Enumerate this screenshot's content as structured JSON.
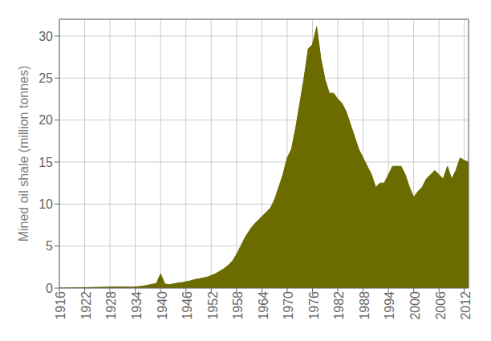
{
  "chart_data": {
    "type": "area",
    "ylabel": "Mined oil shale (million tonnes)",
    "color": "#6b6b00",
    "grid": true,
    "xlim": [
      1916,
      2013
    ],
    "xticks": [
      1916,
      1922,
      1928,
      1934,
      1940,
      1946,
      1952,
      1958,
      1964,
      1970,
      1976,
      1982,
      1988,
      1994,
      2000,
      2006,
      2012
    ],
    "ylim": [
      0,
      32
    ],
    "yticks": [
      0,
      5,
      10,
      15,
      20,
      25,
      30
    ],
    "x": [
      1916,
      1917,
      1918,
      1919,
      1920,
      1921,
      1922,
      1923,
      1924,
      1925,
      1926,
      1927,
      1928,
      1929,
      1930,
      1931,
      1932,
      1933,
      1934,
      1935,
      1936,
      1937,
      1938,
      1939,
      1940,
      1941,
      1942,
      1943,
      1944,
      1945,
      1946,
      1947,
      1948,
      1949,
      1950,
      1951,
      1952,
      1953,
      1954,
      1955,
      1956,
      1957,
      1958,
      1959,
      1960,
      1961,
      1962,
      1963,
      1964,
      1965,
      1966,
      1967,
      1968,
      1969,
      1970,
      1971,
      1972,
      1973,
      1974,
      1975,
      1976,
      1977,
      1978,
      1979,
      1980,
      1981,
      1982,
      1983,
      1984,
      1985,
      1986,
      1987,
      1988,
      1989,
      1990,
      1991,
      1992,
      1993,
      1994,
      1995,
      1996,
      1997,
      1998,
      1999,
      2000,
      2001,
      2002,
      2003,
      2004,
      2005,
      2006,
      2007,
      2008,
      2009,
      2010,
      2011,
      2012,
      2013
    ],
    "values": [
      0.0,
      0.0,
      0.02,
      0.03,
      0.04,
      0.05,
      0.06,
      0.07,
      0.08,
      0.09,
      0.1,
      0.11,
      0.12,
      0.13,
      0.14,
      0.13,
      0.12,
      0.12,
      0.14,
      0.18,
      0.25,
      0.35,
      0.45,
      0.55,
      1.7,
      0.5,
      0.4,
      0.5,
      0.6,
      0.65,
      0.75,
      0.85,
      1.0,
      1.1,
      1.2,
      1.3,
      1.5,
      1.7,
      2.0,
      2.3,
      2.7,
      3.2,
      4.0,
      5.0,
      6.0,
      6.8,
      7.5,
      8.0,
      8.5,
      9.0,
      9.5,
      10.5,
      12.0,
      13.5,
      15.5,
      16.5,
      19.0,
      22.0,
      25.0,
      28.5,
      29.0,
      31.1,
      27.3,
      24.8,
      23.2,
      23.2,
      22.5,
      22.0,
      21.0,
      19.5,
      18.0,
      16.5,
      15.5,
      14.5,
      13.5,
      12.0,
      12.5,
      12.5,
      13.5,
      14.5,
      14.5,
      14.5,
      13.5,
      12.0,
      10.8,
      11.5,
      12.0,
      13.0,
      13.5,
      14.0,
      13.5,
      13.0,
      14.5,
      13.0,
      14.0,
      15.5,
      15.2,
      15.0
    ]
  }
}
